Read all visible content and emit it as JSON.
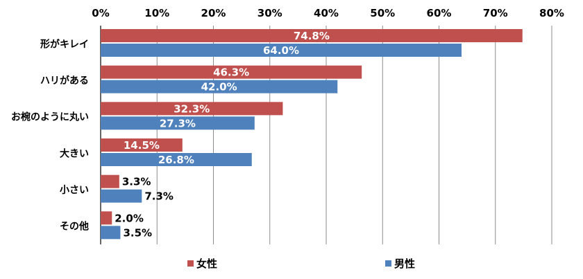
{
  "chart_data": {
    "type": "bar",
    "orientation": "horizontal",
    "categories": [
      "形がキレイ",
      "ハリがある",
      "お椀のように丸い",
      "大きい",
      "小さい",
      "その他"
    ],
    "series": [
      {
        "name": "女性",
        "color": "#c0504d",
        "values": [
          74.8,
          46.3,
          32.3,
          14.5,
          3.3,
          2.0
        ]
      },
      {
        "name": "男性",
        "color": "#4f81bd",
        "values": [
          64.0,
          42.0,
          27.3,
          26.8,
          7.3,
          3.5
        ]
      }
    ],
    "data_labels": [
      [
        "74.8%",
        "46.3%",
        "32.3%",
        "14.5%",
        "3.3%",
        "2.0%"
      ],
      [
        "64.0%",
        "42.0%",
        "27.3%",
        "26.8%",
        "7.3%",
        "3.5%"
      ]
    ],
    "xlim": [
      0,
      80
    ],
    "xticks": [
      "0%",
      "10%",
      "20%",
      "30%",
      "40%",
      "50%",
      "60%",
      "70%",
      "80%"
    ],
    "axis_position": "top",
    "grid": true,
    "legend_position": "bottom"
  }
}
